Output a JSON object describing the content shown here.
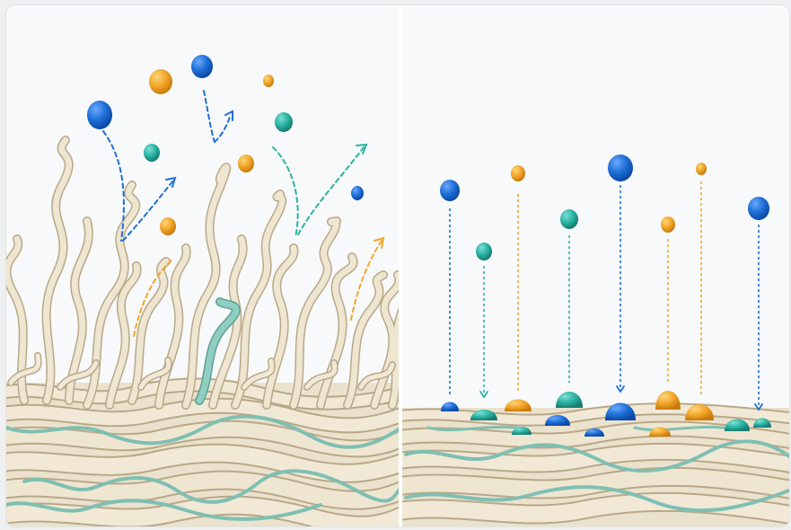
{
  "illustration": {
    "panels": [
      {
        "id": "left",
        "state": "raised-fibers",
        "droplet_motion": "scattered"
      },
      {
        "id": "right",
        "state": "flat-surface",
        "droplet_motion": "straight-down-and-absorbed"
      }
    ],
    "colors": {
      "background": "#f8f9fa",
      "fiber_fill": "#ece3cf",
      "fiber_edge": "#b8a888",
      "accent_thread": "#7fbfb3",
      "droplet_blue": "#1f6fd6",
      "droplet_teal": "#2ab3a3",
      "droplet_orange": "#f2a62a",
      "divider": "#ffffff"
    }
  }
}
